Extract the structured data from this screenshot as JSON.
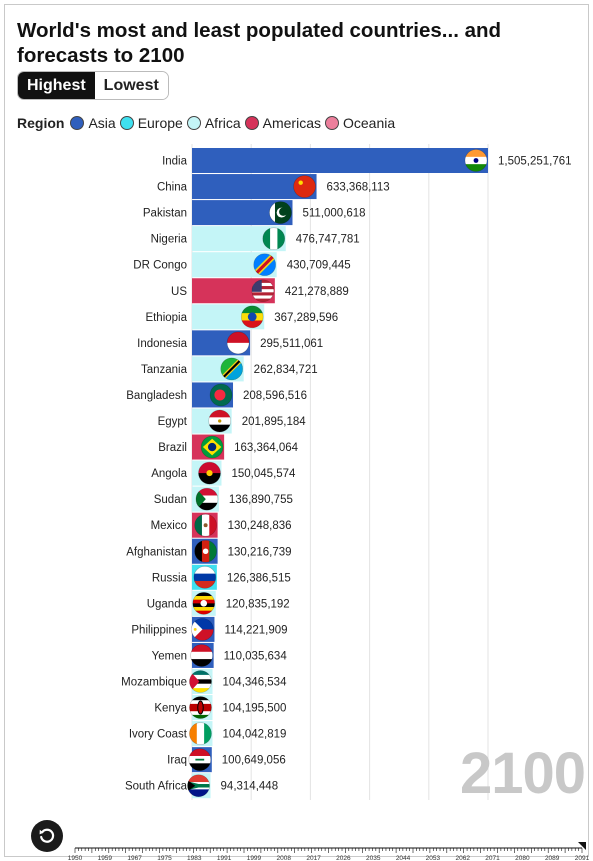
{
  "title": "World's most and least populated countries... and forecasts to 2100",
  "toggle": {
    "options": [
      "Highest",
      "Lowest"
    ],
    "active": "Highest"
  },
  "legend": {
    "title": "Region",
    "items": [
      {
        "label": "Asia",
        "color": "#2f5fbd"
      },
      {
        "label": "Europe",
        "color": "#3fe0f0"
      },
      {
        "label": "Africa",
        "color": "#c4f5f7"
      },
      {
        "label": "Americas",
        "color": "#d6335a"
      },
      {
        "label": "Oceania",
        "color": "#ec7f9c"
      }
    ]
  },
  "year_label": "2100",
  "timeline": {
    "ticks": [
      "1950",
      "1959",
      "1967",
      "1975",
      "1983",
      "1991",
      "1999",
      "2008",
      "2017",
      "2026",
      "2035",
      "2044",
      "2053",
      "2062",
      "2071",
      "2080",
      "2089",
      "2091"
    ]
  },
  "chart_data": {
    "type": "bar",
    "orientation": "horizontal",
    "year": 2100,
    "categories": [
      "India",
      "China",
      "Pakistan",
      "Nigeria",
      "DR Congo",
      "US",
      "Ethiopia",
      "Indonesia",
      "Tanzania",
      "Bangladesh",
      "Egypt",
      "Brazil",
      "Angola",
      "Sudan",
      "Mexico",
      "Afghanistan",
      "Russia",
      "Uganda",
      "Philippines",
      "Yemen",
      "Mozambique",
      "Kenya",
      "Ivory Coast",
      "Iraq",
      "South Africa"
    ],
    "values": [
      1505251761,
      633368113,
      511000618,
      476747781,
      430709445,
      421278889,
      367289596,
      295511061,
      262834721,
      208596516,
      201895184,
      163364064,
      150045574,
      136890755,
      130248836,
      130216739,
      126386515,
      120835192,
      114221909,
      110035634,
      104346534,
      104195500,
      104042819,
      100649056,
      94314448
    ],
    "value_labels": [
      "1,505,251,761",
      "633,368,113",
      "511,000,618",
      "476,747,781",
      "430,709,445",
      "421,278,889",
      "367,289,596",
      "295,511,061",
      "262,834,721",
      "208,596,516",
      "201,895,184",
      "163,364,064",
      "150,045,574",
      "136,890,755",
      "130,248,836",
      "130,216,739",
      "126,386,515",
      "120,835,192",
      "114,221,909",
      "110,035,634",
      "104,346,534",
      "104,195,500",
      "104,042,819",
      "100,649,056",
      "94,314,448"
    ],
    "regions": [
      "Asia",
      "Asia",
      "Asia",
      "Africa",
      "Africa",
      "Americas",
      "Africa",
      "Asia",
      "Africa",
      "Asia",
      "Africa",
      "Americas",
      "Africa",
      "Africa",
      "Americas",
      "Asia",
      "Europe",
      "Africa",
      "Asia",
      "Asia",
      "Africa",
      "Africa",
      "Africa",
      "Asia",
      "Africa"
    ],
    "flags": [
      "india",
      "china",
      "pakistan",
      "nigeria",
      "dr-congo",
      "us",
      "ethiopia",
      "indonesia",
      "tanzania",
      "bangladesh",
      "egypt",
      "brazil",
      "angola",
      "sudan",
      "mexico",
      "afghanistan",
      "russia",
      "uganda",
      "philippines",
      "yemen",
      "mozambique",
      "kenya",
      "ivory-coast",
      "iraq",
      "south-africa"
    ],
    "xlim": [
      0,
      1505251761
    ],
    "grid": true,
    "legend_position": "top-left"
  }
}
